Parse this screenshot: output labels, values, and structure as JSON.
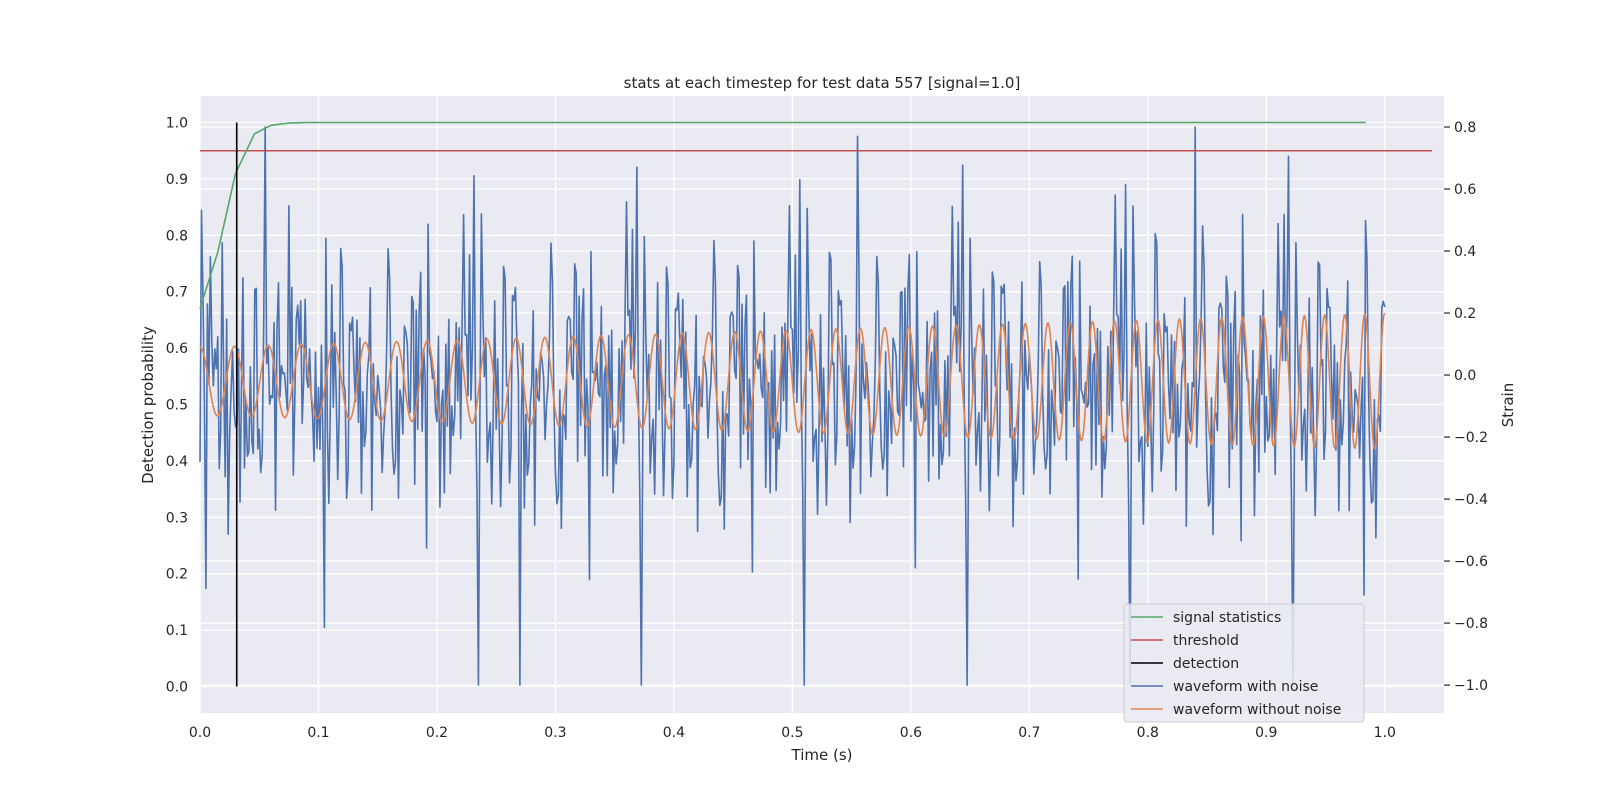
{
  "chart_data": {
    "type": "line",
    "title": "stats at each timestep for test data 557 [signal=1.0]",
    "xlabel": "Time (s)",
    "ylabel_left": "Detection probability",
    "ylabel_right": "Strain",
    "xlim": [
      0.0,
      1.05
    ],
    "ylim_left": [
      -0.047,
      1.047
    ],
    "ylim_right": [
      -1.09,
      0.9
    ],
    "x_ticks": [
      "0.0",
      "0.1",
      "0.2",
      "0.3",
      "0.4",
      "0.5",
      "0.6",
      "0.7",
      "0.8",
      "0.9",
      "1.0"
    ],
    "y_left_ticks": [
      "0.0",
      "0.1",
      "0.2",
      "0.3",
      "0.4",
      "0.5",
      "0.6",
      "0.7",
      "0.8",
      "0.9",
      "1.0"
    ],
    "y_right_ticks": [
      "−1.0",
      "−0.8",
      "−0.6",
      "−0.4",
      "−0.2",
      "0.0",
      "0.2",
      "0.4",
      "0.6",
      "0.8"
    ],
    "grid": true,
    "legend_position": "bottom-right",
    "series": [
      {
        "name": "signal statistics",
        "axis": "left",
        "color": "#55a868",
        "x": [
          0.0,
          0.015,
          0.03,
          0.046,
          0.06,
          0.075,
          0.09,
          0.2,
          0.5,
          0.8,
          0.984
        ],
        "y": [
          0.67,
          0.77,
          0.91,
          0.98,
          0.995,
          0.999,
          1.0,
          1.0,
          1.0,
          1.0,
          1.0
        ]
      },
      {
        "name": "threshold",
        "axis": "left",
        "color": "#c44e52",
        "x": [
          0.0,
          1.04
        ],
        "y": [
          0.95,
          0.95
        ]
      },
      {
        "name": "detection",
        "axis": "left",
        "color": "#000000",
        "x": [
          0.031,
          0.031
        ],
        "y": [
          0.0,
          1.0
        ]
      },
      {
        "name": "waveform with noise",
        "axis": "right",
        "color": "#4c72b0",
        "x_range": [
          0.0,
          1.0
        ],
        "samples": 800,
        "min": -1.0,
        "max": 0.8,
        "spread": 0.26
      },
      {
        "name": "waveform without noise",
        "axis": "right",
        "color": "#dd8452",
        "x_range": [
          0.0,
          1.0
        ],
        "samples": 1200,
        "amplitude_start": 0.11,
        "amplitude_end": 0.22,
        "freq_start_hz": 34,
        "freq_end_hz": 60
      }
    ]
  }
}
